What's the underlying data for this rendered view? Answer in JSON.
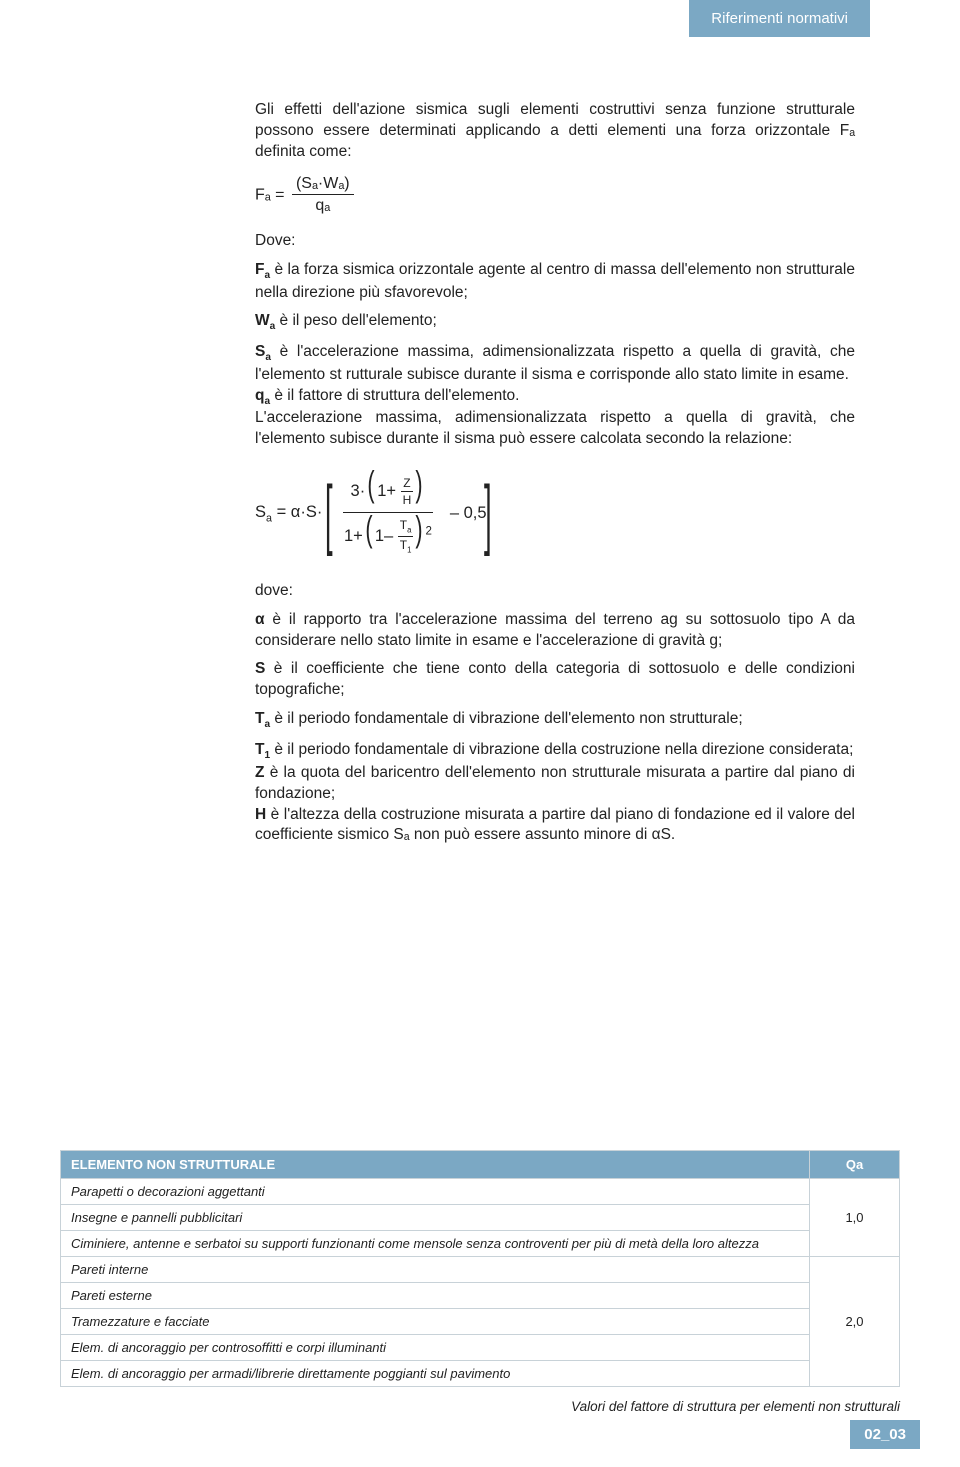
{
  "header_tab": "Riferimenti normativi",
  "intro": "Gli effetti dell'azione sismica sugli elementi costruttivi senza funzione strutturale possono essere determinati applicando a detti elementi una forza orizzontale Fₐ definita come:",
  "formula1_lhs": "Fₐ =",
  "formula1_num": "(Sₐ·Wₐ)",
  "formula1_den": "qₐ",
  "dove": "Dove:",
  "def_fa": " è la forza sismica orizzontale agente al centro di massa dell'elemento non strutturale nella direzione più sfavorevole;",
  "def_wa": " è il peso dell'elemento;",
  "def_sa": " è l'accelerazione massima, adimensionalizzata rispetto a quella di gravità, che l'elemento st rutturale subisce durante il sisma e corrisponde allo stato limite in esame.",
  "def_qa": " è il fattore di struttura dell'elemento.",
  "accel_text": "L'accelerazione massima, adimensionalizzata rispetto a quella di gravità, che l'elemento subisce durante il sisma può essere calcolata secondo la relazione:",
  "dove2": "dove:",
  "def_alpha": " è il rapporto tra l'accelerazione massima del terreno ag su sottosuolo tipo A da considerare nello stato limite in esame e l'accelerazione di gravità g;",
  "def_s": " è il coefficiente che tiene conto della categoria di sottosuolo e delle condizioni topografiche;",
  "def_ta": " è il periodo fondamentale di vibrazione dell'elemento non strutturale;",
  "def_t1": " è il periodo fondamentale di vibrazione della costruzione nella direzione considerata;",
  "def_z": " è la quota del baricentro dell'elemento non strutturale misurata a partire dal piano di fondazione;",
  "def_h": " è l'altezza della costruzione misurata a partire dal piano di fondazione ed il valore del coefficiente sismico Sₐ non può essere assunto minore di αS.",
  "table": {
    "header_left": "ELEMENTO NON STRUTTURALE",
    "header_right": "Qa",
    "rows_group1": [
      "Parapetti o decorazioni aggettanti",
      "Insegne e pannelli pubblicitari",
      "Ciminiere, antenne e serbatoi su supporti funzionanti come mensole senza controventi per più di metà della loro altezza"
    ],
    "val1": "1,0",
    "rows_group2": [
      "Pareti interne",
      "Pareti esterne",
      "Tramezzature e facciate",
      "Elem. di ancoraggio per controsoffitti e corpi illuminanti",
      "Elem. di ancoraggio per armadi/librerie direttamente poggianti sul pavimento"
    ],
    "val2": "2,0"
  },
  "table_caption": "Valori del fattore di struttura per elementi non strutturali",
  "page_num": "02_03"
}
